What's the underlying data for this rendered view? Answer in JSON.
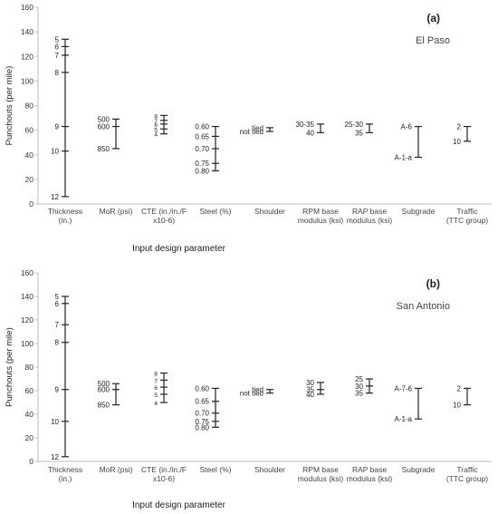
{
  "chart_data": [
    {
      "type": "range",
      "panel_label": "(a)",
      "region": "El Paso",
      "ylabel": "Punchouts (per mile)",
      "xlabel": "Input design parameter",
      "ylim": [
        0,
        160
      ],
      "yticks": [
        0,
        20,
        40,
        60,
        80,
        100,
        120,
        140,
        160
      ],
      "grid": false,
      "categories": [
        {
          "label": [
            "Thickness",
            "(in.)"
          ],
          "points": [
            {
              "label": "5",
              "value": 134
            },
            {
              "label": "6",
              "value": 128
            },
            {
              "label": "7",
              "value": 121
            },
            {
              "label": "8",
              "value": 107
            },
            {
              "label": "9",
              "value": 63
            },
            {
              "label": "10",
              "value": 43
            },
            {
              "label": "12",
              "value": 6
            }
          ]
        },
        {
          "label": [
            "MoR (psi)"
          ],
          "points": [
            {
              "label": "500",
              "value": 69
            },
            {
              "label": "600",
              "value": 63
            },
            {
              "label": "850",
              "value": 45
            }
          ]
        },
        {
          "label": [
            "CTE (in./in./F",
            "x10-6)"
          ],
          "points": [
            {
              "label": "8",
              "value": 72
            },
            {
              "label": "7",
              "value": 68
            },
            {
              "label": "6",
              "value": 65
            },
            {
              "label": "5",
              "value": 61
            },
            {
              "label": "4",
              "value": 57
            }
          ]
        },
        {
          "label": [
            "Steel (%)"
          ],
          "points": [
            {
              "label": "0.60",
              "value": 63
            },
            {
              "label": "0.65",
              "value": 55
            },
            {
              "label": "0.70",
              "value": 45
            },
            {
              "label": "0.75",
              "value": 33
            },
            {
              "label": "0.80",
              "value": 27
            }
          ]
        },
        {
          "label": [
            "Shoulder"
          ],
          "points": [
            {
              "label": "tied",
              "value": 62
            },
            {
              "label": "not tied",
              "value": 59
            }
          ]
        },
        {
          "label": [
            "RPM base",
            "modulus (ksi)"
          ],
          "points": [
            {
              "label": "30-35",
              "value": 65
            },
            {
              "label": "40",
              "value": 58
            }
          ]
        },
        {
          "label": [
            "RAP base",
            "modulus (ksi)"
          ],
          "points": [
            {
              "label": "25-30",
              "value": 65
            },
            {
              "label": "35",
              "value": 58
            }
          ]
        },
        {
          "label": [
            "Subgrade"
          ],
          "points": [
            {
              "label": "A-6",
              "value": 63
            },
            {
              "label": "A-1-a",
              "value": 38
            }
          ]
        },
        {
          "label": [
            "Traffic",
            "(TTC group)"
          ],
          "points": [
            {
              "label": "2",
              "value": 63
            },
            {
              "label": "10",
              "value": 51
            }
          ]
        }
      ]
    },
    {
      "type": "range",
      "panel_label": "(b)",
      "region": "San Antonio",
      "ylabel": "Punchouts (per mile)",
      "xlabel": "Input design parameter",
      "ylim": [
        0,
        160
      ],
      "yticks": [
        0,
        20,
        40,
        60,
        80,
        100,
        120,
        140,
        160
      ],
      "grid": false,
      "categories": [
        {
          "label": [
            "Thickness",
            "(in.)"
          ],
          "points": [
            {
              "label": "5",
              "value": 140
            },
            {
              "label": "6",
              "value": 134
            },
            {
              "label": "7",
              "value": 116
            },
            {
              "label": "8",
              "value": 101
            },
            {
              "label": "9",
              "value": 61
            },
            {
              "label": "10",
              "value": 34
            },
            {
              "label": "12",
              "value": 4
            }
          ]
        },
        {
          "label": [
            "MoR (psi)"
          ],
          "points": [
            {
              "label": "500",
              "value": 66
            },
            {
              "label": "600",
              "value": 61
            },
            {
              "label": "850",
              "value": 48
            }
          ]
        },
        {
          "label": [
            "CTE (in./in./F",
            "x10-6)"
          ],
          "points": [
            {
              "label": "8",
              "value": 75
            },
            {
              "label": "7",
              "value": 69
            },
            {
              "label": "6",
              "value": 63
            },
            {
              "label": "5",
              "value": 57
            },
            {
              "label": "4",
              "value": 50
            }
          ]
        },
        {
          "label": [
            "Steel (%)"
          ],
          "points": [
            {
              "label": "0.60",
              "value": 62
            },
            {
              "label": "0.65",
              "value": 51
            },
            {
              "label": "0.70",
              "value": 41
            },
            {
              "label": "0.75",
              "value": 34
            },
            {
              "label": "0.80",
              "value": 29
            }
          ]
        },
        {
          "label": [
            "Shoulder"
          ],
          "points": [
            {
              "label": "tied",
              "value": 61
            },
            {
              "label": "not tied",
              "value": 58
            }
          ]
        },
        {
          "label": [
            "RPM base",
            "modulus (ksi)"
          ],
          "points": [
            {
              "label": "30",
              "value": 67
            },
            {
              "label": "35",
              "value": 61
            },
            {
              "label": "40",
              "value": 57
            }
          ]
        },
        {
          "label": [
            "RAP base",
            "modulus (ksi)"
          ],
          "points": [
            {
              "label": "25",
              "value": 70
            },
            {
              "label": "30",
              "value": 64
            },
            {
              "label": "35",
              "value": 58
            }
          ]
        },
        {
          "label": [
            "Subgrade"
          ],
          "points": [
            {
              "label": "A-7-6",
              "value": 62
            },
            {
              "label": "A-1-a",
              "value": 36
            }
          ]
        },
        {
          "label": [
            "Traffic",
            "(TTC group)"
          ],
          "points": [
            {
              "label": "2",
              "value": 62
            },
            {
              "label": "10",
              "value": 48
            }
          ]
        }
      ]
    }
  ]
}
